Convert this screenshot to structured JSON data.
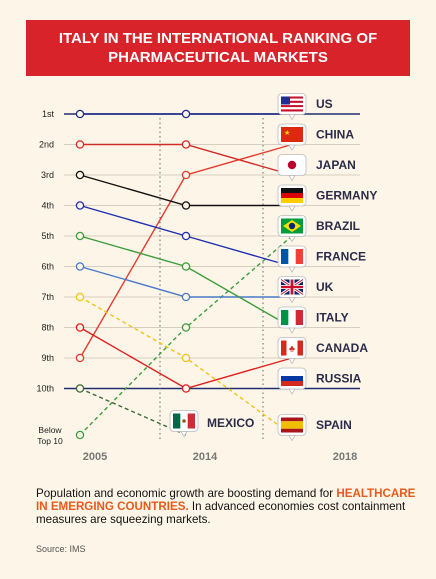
{
  "banner": {
    "line1": "ITALY IN THE INTERNATIONAL RANKING OF",
    "line2": "PHARMACEUTICAL MARKETS"
  },
  "chart_data": {
    "type": "line",
    "title": "ITALY IN THE INTERNATIONAL RANKING OF PHARMACEUTICAL MARKETS",
    "categories": [
      "2005",
      "2014",
      "2018"
    ],
    "rank_labels": [
      "1st",
      "2nd",
      "3rd",
      "4th",
      "5th",
      "6th",
      "7th",
      "8th",
      "9th",
      "10th",
      "Below Top 10"
    ],
    "rank_label_lines": [
      [
        "1st"
      ],
      [
        "2nd"
      ],
      [
        "3rd"
      ],
      [
        "4th"
      ],
      [
        "5th"
      ],
      [
        "6th"
      ],
      [
        "7th"
      ],
      [
        "8th"
      ],
      [
        "9th"
      ],
      [
        "10th"
      ],
      [
        "Below",
        "Top 10"
      ]
    ],
    "y_axis": "rank (11 = Below Top 10)",
    "series": [
      {
        "name": "US",
        "values": [
          1,
          1,
          1
        ],
        "color": "#1f2e8f",
        "dashed": false,
        "flag": "us"
      },
      {
        "name": "CHINA",
        "values": [
          9,
          3,
          2
        ],
        "color": "#e63a30",
        "dashed": false,
        "flag": "cn"
      },
      {
        "name": "JAPAN",
        "values": [
          2,
          2,
          3
        ],
        "color": "#d22a2a",
        "dashed": false,
        "flag": "jp"
      },
      {
        "name": "GERMANY",
        "values": [
          3,
          4,
          4
        ],
        "color": "#111111",
        "dashed": false,
        "flag": "de"
      },
      {
        "name": "BRAZIL",
        "values": [
          11,
          8,
          5
        ],
        "color": "#3d9b3d",
        "dashed": true,
        "flag": "br"
      },
      {
        "name": "FRANCE",
        "values": [
          4,
          5,
          6
        ],
        "color": "#1f2eb0",
        "dashed": false,
        "flag": "fr"
      },
      {
        "name": "UK",
        "values": [
          6,
          7,
          7
        ],
        "color": "#4a78c8",
        "dashed": false,
        "flag": "uk"
      },
      {
        "name": "ITALY",
        "values": [
          5,
          6,
          8
        ],
        "color": "#3d9b3d",
        "dashed": false,
        "flag": "it"
      },
      {
        "name": "CANADA",
        "values": [
          8,
          10,
          9
        ],
        "color": "#e01e1e",
        "dashed": false,
        "flag": "ca"
      },
      {
        "name": "RUSSIA",
        "values": [
          null,
          null,
          10
        ],
        "color": "#555555",
        "dashed": false,
        "flag": "ru"
      },
      {
        "name": "SPAIN",
        "values": [
          7,
          9,
          11
        ],
        "color": "#f2c21a",
        "dashed": true,
        "flag": "es"
      },
      {
        "name": "MEXICO",
        "values": [
          10,
          11,
          null
        ],
        "color": "#3a6a3a",
        "dashed": true,
        "flag": "mx"
      }
    ]
  },
  "footer": {
    "text_before": "Population and economic growth are boosting demand for ",
    "highlight": "HEALTHCARE IN EMERGING COUNTRIES.",
    "text_after": " In advanced economies cost containment measures are squeezing markets.",
    "source": "Source: IMS"
  }
}
